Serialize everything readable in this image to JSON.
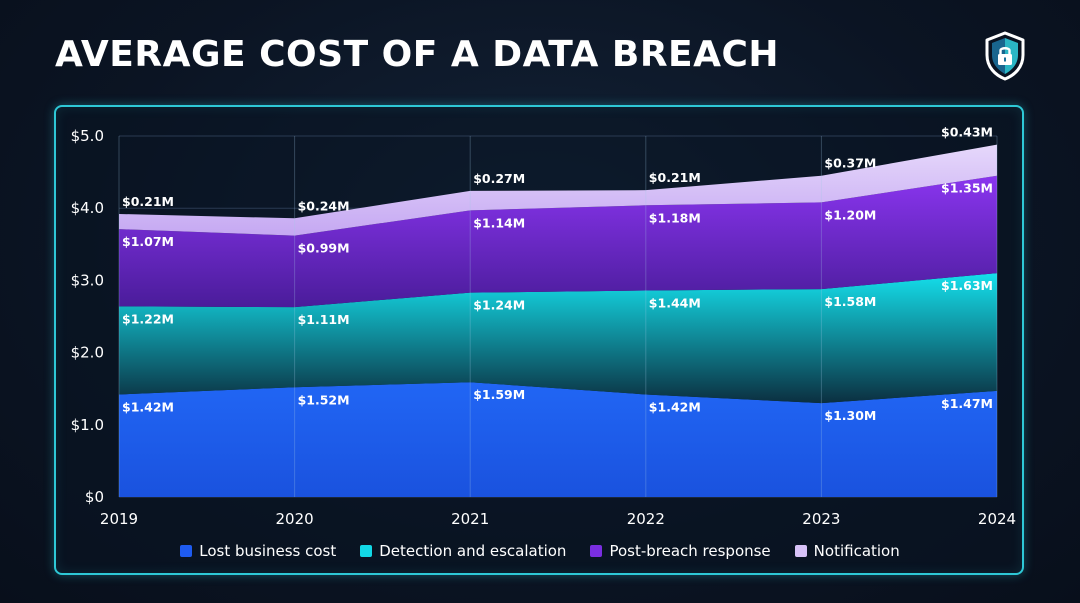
{
  "title": "AVERAGE COST OF A DATA BREACH",
  "header_icon": "shield-lock-icon",
  "chart_data": {
    "type": "area",
    "stacked": true,
    "x": [
      "2019",
      "2020",
      "2021",
      "2022",
      "2023",
      "2024"
    ],
    "ylim": [
      0,
      5.0
    ],
    "yticks": [
      "$0",
      "$1.0",
      "$2.0",
      "$3.0",
      "$4.0",
      "$5.0"
    ],
    "grid": true,
    "legend_position": "bottom",
    "series": [
      {
        "name": "Lost business cost",
        "color": "#1e5bf0",
        "values": [
          1.42,
          1.52,
          1.59,
          1.42,
          1.3,
          1.47
        ],
        "labels": [
          "$1.42M",
          "$1.52M",
          "$1.59M",
          "$1.42M",
          "$1.30M",
          "$1.47M"
        ]
      },
      {
        "name": "Detection and escalation",
        "color": "#12d8e6",
        "values": [
          1.22,
          1.11,
          1.24,
          1.44,
          1.58,
          1.63
        ],
        "labels": [
          "$1.22M",
          "$1.11M",
          "$1.24M",
          "$1.44M",
          "$1.58M",
          "$1.63M"
        ]
      },
      {
        "name": "Post-breach response",
        "color": "#7a2ee0",
        "values": [
          1.07,
          0.99,
          1.14,
          1.18,
          1.2,
          1.35
        ],
        "labels": [
          "$1.07M",
          "$0.99M",
          "$1.14M",
          "$1.18M",
          "$1.20M",
          "$1.35M"
        ]
      },
      {
        "name": "Notification",
        "color": "#d7c2f7",
        "values": [
          0.21,
          0.24,
          0.27,
          0.21,
          0.37,
          0.43
        ],
        "labels": [
          "$0.21M",
          "$0.24M",
          "$0.27M",
          "$0.21M",
          "$0.37M",
          "$0.43M"
        ]
      }
    ]
  }
}
